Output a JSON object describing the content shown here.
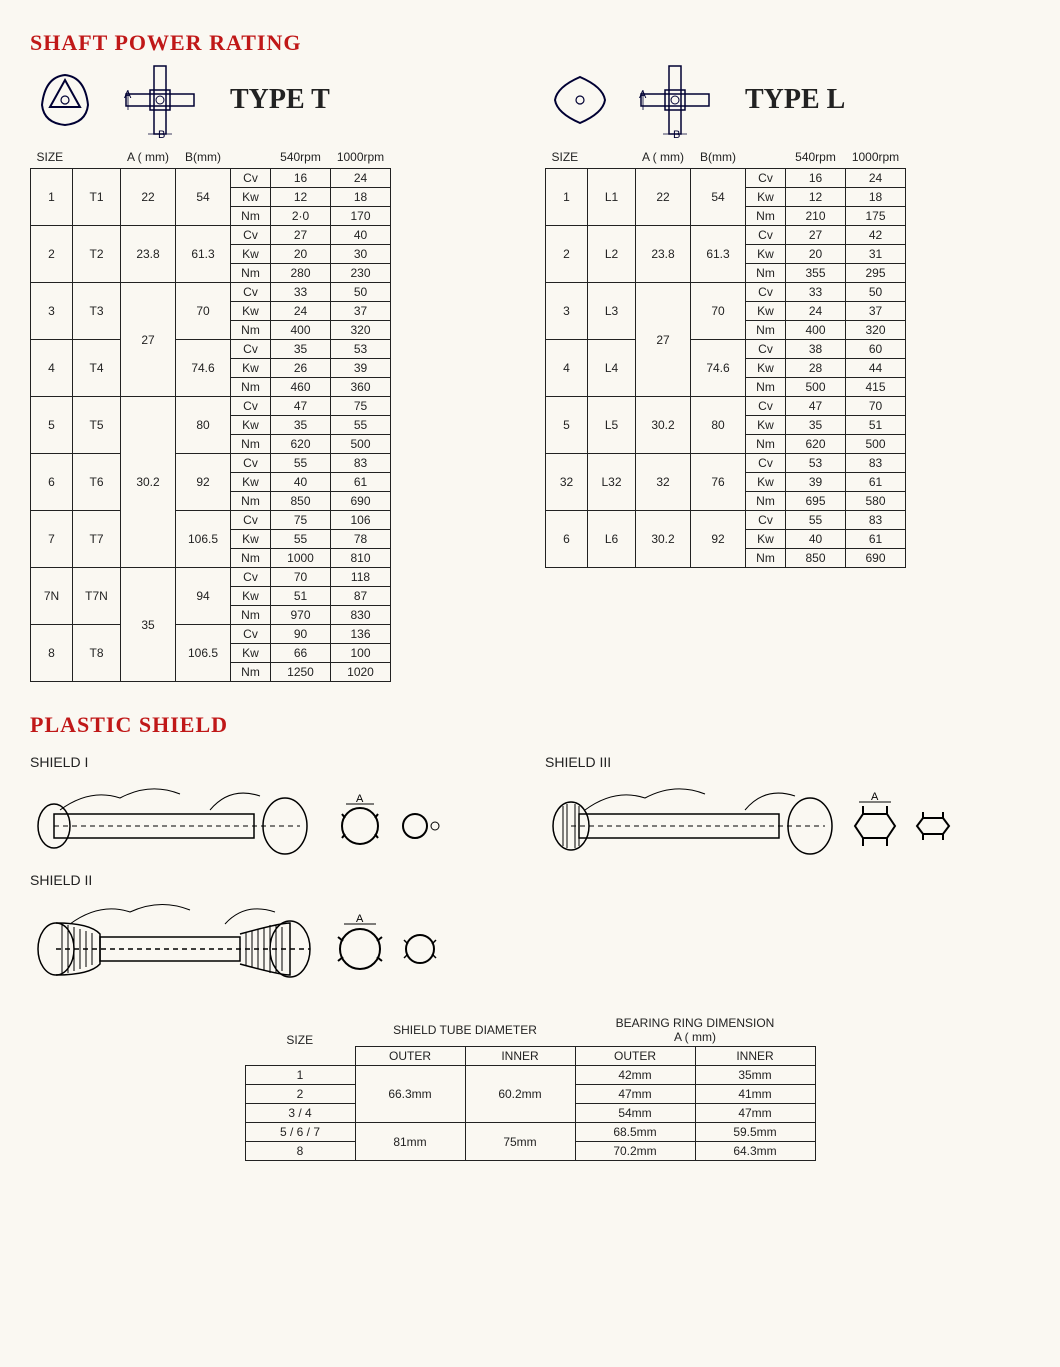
{
  "titles": {
    "shaft_power": "SHAFT POWER RATING",
    "plastic_shield": "PLASTIC SHIELD",
    "type_t": "TYPE T",
    "type_l": "TYPE L"
  },
  "headers": {
    "size": "SIZE",
    "a_mm": "A ( mm)",
    "b_mm": "B(mm)",
    "rpm540": "540rpm",
    "rpm1000": "1000rpm",
    "cv": "Cv",
    "kw": "Kw",
    "nm": "Nm"
  },
  "type_t": {
    "rows": [
      {
        "n": "1",
        "code": "T1",
        "a": "22",
        "b": "54",
        "cv": [
          "16",
          "24"
        ],
        "kw": [
          "12",
          "18"
        ],
        "nm": [
          "2·0",
          "170"
        ]
      },
      {
        "n": "2",
        "code": "T2",
        "a": "23.8",
        "b": "61.3",
        "cv": [
          "27",
          "40"
        ],
        "kw": [
          "20",
          "30"
        ],
        "nm": [
          "280",
          "230"
        ]
      },
      {
        "n": "3",
        "code": "T3",
        "a": "27",
        "b": "70",
        "cv": [
          "33",
          "50"
        ],
        "kw": [
          "24",
          "37"
        ],
        "nm": [
          "400",
          "320"
        ],
        "a_span": 2
      },
      {
        "n": "4",
        "code": "T4",
        "a": "",
        "b": "74.6",
        "cv": [
          "35",
          "53"
        ],
        "kw": [
          "26",
          "39"
        ],
        "nm": [
          "460",
          "360"
        ]
      },
      {
        "n": "5",
        "code": "T5",
        "a": "30.2",
        "b": "80",
        "cv": [
          "47",
          "75"
        ],
        "kw": [
          "35",
          "55"
        ],
        "nm": [
          "620",
          "500"
        ],
        "a_span": 3
      },
      {
        "n": "6",
        "code": "T6",
        "a": "",
        "b": "92",
        "cv": [
          "55",
          "83"
        ],
        "kw": [
          "40",
          "61"
        ],
        "nm": [
          "850",
          "690"
        ]
      },
      {
        "n": "7",
        "code": "T7",
        "a": "",
        "b": "106.5",
        "cv": [
          "75",
          "106"
        ],
        "kw": [
          "55",
          "78"
        ],
        "nm": [
          "1000",
          "810"
        ]
      },
      {
        "n": "7N",
        "code": "T7N",
        "a": "35",
        "b": "94",
        "cv": [
          "70",
          "118"
        ],
        "kw": [
          "51",
          "87"
        ],
        "nm": [
          "970",
          "830"
        ],
        "a_span": 2
      },
      {
        "n": "8",
        "code": "T8",
        "a": "",
        "b": "106.5",
        "cv": [
          "90",
          "136"
        ],
        "kw": [
          "66",
          "100"
        ],
        "nm": [
          "1250",
          "1020"
        ]
      }
    ]
  },
  "type_l": {
    "rows": [
      {
        "n": "1",
        "code": "L1",
        "a": "22",
        "b": "54",
        "cv": [
          "16",
          "24"
        ],
        "kw": [
          "12",
          "18"
        ],
        "nm": [
          "210",
          "175"
        ]
      },
      {
        "n": "2",
        "code": "L2",
        "a": "23.8",
        "b": "61.3",
        "cv": [
          "27",
          "42"
        ],
        "kw": [
          "20",
          "31"
        ],
        "nm": [
          "355",
          "295"
        ]
      },
      {
        "n": "3",
        "code": "L3",
        "a": "27",
        "b": "70",
        "cv": [
          "33",
          "50"
        ],
        "kw": [
          "24",
          "37"
        ],
        "nm": [
          "400",
          "320"
        ],
        "a_span": 2
      },
      {
        "n": "4",
        "code": "L4",
        "a": "",
        "b": "74.6",
        "cv": [
          "38",
          "60"
        ],
        "kw": [
          "28",
          "44"
        ],
        "nm": [
          "500",
          "415"
        ]
      },
      {
        "n": "5",
        "code": "L5",
        "a": "30.2",
        "b": "80",
        "cv": [
          "47",
          "70"
        ],
        "kw": [
          "35",
          "51"
        ],
        "nm": [
          "620",
          "500"
        ]
      },
      {
        "n": "32",
        "code": "L32",
        "a": "32",
        "b": "76",
        "cv": [
          "53",
          "83"
        ],
        "kw": [
          "39",
          "61"
        ],
        "nm": [
          "695",
          "580"
        ]
      },
      {
        "n": "6",
        "code": "L6",
        "a": "30.2",
        "b": "92",
        "cv": [
          "55",
          "83"
        ],
        "kw": [
          "40",
          "61"
        ],
        "nm": [
          "850",
          "690"
        ]
      }
    ]
  },
  "shield_labels": {
    "s1": "SHIELD I",
    "s2": "SHIELD II",
    "s3": "SHIELD III"
  },
  "shield_table": {
    "headers": {
      "size": "SIZE",
      "tube": "SHIELD TUBE DIAMETER",
      "bearing": "BEARING RING DIMENSION",
      "a_mm": "A ( mm)",
      "outer": "OUTER",
      "inner": "INNER"
    },
    "rows": [
      {
        "size": "1",
        "tube_out": "66.3mm",
        "tube_in": "60.2mm",
        "b_out": "42mm",
        "b_in": "35mm",
        "tube_span": 3
      },
      {
        "size": "2",
        "tube_out": "",
        "tube_in": "",
        "b_out": "47mm",
        "b_in": "41mm"
      },
      {
        "size": "3 / 4",
        "tube_out": "",
        "tube_in": "",
        "b_out": "54mm",
        "b_in": "47mm"
      },
      {
        "size": "5 / 6 / 7",
        "tube_out": "81mm",
        "tube_in": "75mm",
        "b_out": "68.5mm",
        "b_in": "59.5mm",
        "tube_span": 2
      },
      {
        "size": "8",
        "tube_out": "",
        "tube_in": "",
        "b_out": "70.2mm",
        "b_in": "64.3mm"
      }
    ]
  },
  "colors": {
    "title": "#c01818",
    "border": "#222222",
    "bg": "#faf8f2"
  }
}
